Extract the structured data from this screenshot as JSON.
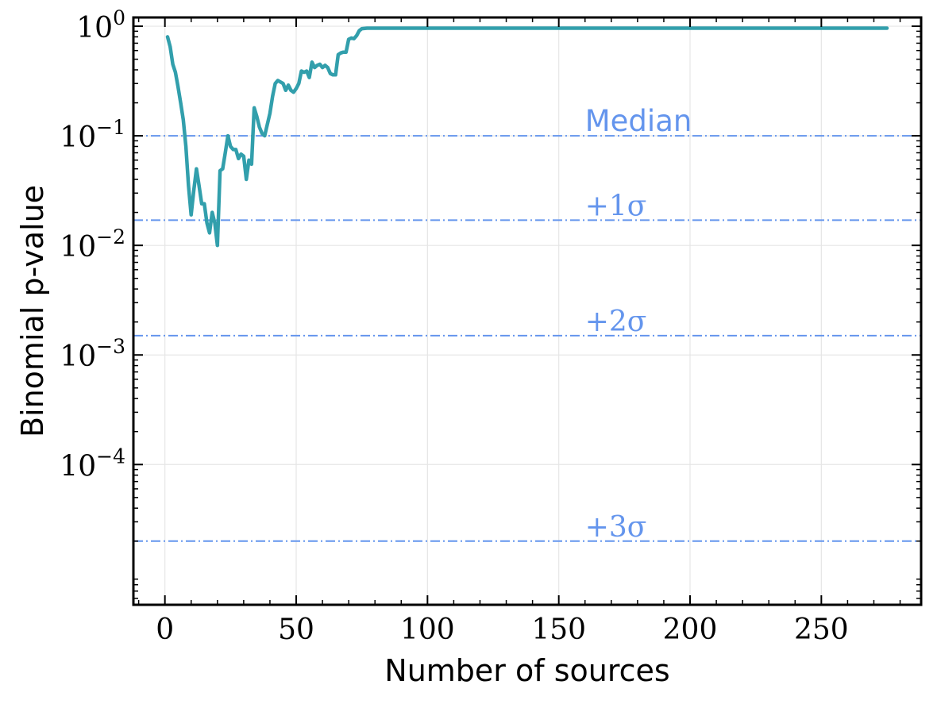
{
  "chart_data": {
    "type": "line",
    "xlabel": "Number of sources",
    "ylabel": "Binomial p-value",
    "xlim": [
      -12,
      288
    ],
    "ylim_log10": [
      -5.28,
      0.08
    ],
    "y_scale": "log",
    "grid": true,
    "x_ticks": [
      {
        "value": 0,
        "label": "0"
      },
      {
        "value": 50,
        "label": "50"
      },
      {
        "value": 100,
        "label": "100"
      },
      {
        "value": 150,
        "label": "150"
      },
      {
        "value": 200,
        "label": "200"
      },
      {
        "value": 250,
        "label": "250"
      }
    ],
    "y_ticks": [
      {
        "value": 1,
        "base": "10",
        "exp": "0"
      },
      {
        "value": 0.1,
        "base": "10",
        "exp": "−1"
      },
      {
        "value": 0.01,
        "base": "10",
        "exp": "−2"
      },
      {
        "value": 0.001,
        "base": "10",
        "exp": "−3"
      },
      {
        "value": 0.0001,
        "base": "10",
        "exp": "−4"
      }
    ],
    "reference_lines": [
      {
        "y": 0.1,
        "label": "Median",
        "label_x": 160,
        "style": "sans"
      },
      {
        "y": 0.017,
        "label": "+1σ",
        "label_x": 160,
        "style": "serif"
      },
      {
        "y": 0.0015,
        "label": "+2σ",
        "label_x": 160,
        "style": "serif"
      },
      {
        "y": 2e-05,
        "label": "+3σ",
        "label_x": 160,
        "style": "serif"
      }
    ],
    "series": [
      {
        "color": "#329fac",
        "points": [
          [
            1,
            0.8
          ],
          [
            2,
            0.65
          ],
          [
            3,
            0.45
          ],
          [
            4,
            0.38
          ],
          [
            5,
            0.28
          ],
          [
            6,
            0.2
          ],
          [
            7,
            0.14
          ],
          [
            8,
            0.08
          ],
          [
            9,
            0.035
          ],
          [
            10,
            0.019
          ],
          [
            11,
            0.032
          ],
          [
            12,
            0.05
          ],
          [
            13,
            0.035
          ],
          [
            14,
            0.024
          ],
          [
            15,
            0.024
          ],
          [
            16,
            0.016
          ],
          [
            17,
            0.013
          ],
          [
            18,
            0.02
          ],
          [
            19,
            0.016
          ],
          [
            20,
            0.01
          ],
          [
            21,
            0.048
          ],
          [
            22,
            0.05
          ],
          [
            23,
            0.07
          ],
          [
            24,
            0.1
          ],
          [
            25,
            0.08
          ],
          [
            26,
            0.075
          ],
          [
            27,
            0.075
          ],
          [
            28,
            0.062
          ],
          [
            29,
            0.068
          ],
          [
            30,
            0.065
          ],
          [
            31,
            0.04
          ],
          [
            32,
            0.06
          ],
          [
            33,
            0.055
          ],
          [
            34,
            0.18
          ],
          [
            35,
            0.15
          ],
          [
            36,
            0.12
          ],
          [
            37,
            0.105
          ],
          [
            38,
            0.1
          ],
          [
            40,
            0.16
          ],
          [
            41,
            0.23
          ],
          [
            42,
            0.3
          ],
          [
            43,
            0.32
          ],
          [
            44,
            0.31
          ],
          [
            45,
            0.3
          ],
          [
            46,
            0.26
          ],
          [
            47,
            0.29
          ],
          [
            48,
            0.26
          ],
          [
            49,
            0.25
          ],
          [
            50,
            0.27
          ],
          [
            51,
            0.3
          ],
          [
            52,
            0.39
          ],
          [
            53,
            0.38
          ],
          [
            54,
            0.39
          ],
          [
            55,
            0.34
          ],
          [
            56,
            0.47
          ],
          [
            57,
            0.42
          ],
          [
            58,
            0.44
          ],
          [
            59,
            0.45
          ],
          [
            60,
            0.42
          ],
          [
            61,
            0.44
          ],
          [
            62,
            0.42
          ],
          [
            63,
            0.37
          ],
          [
            64,
            0.36
          ],
          [
            65,
            0.36
          ],
          [
            66,
            0.55
          ],
          [
            67,
            0.57
          ],
          [
            68,
            0.58
          ],
          [
            69,
            0.58
          ],
          [
            70,
            0.76
          ],
          [
            71,
            0.78
          ],
          [
            72,
            0.77
          ],
          [
            73,
            0.82
          ],
          [
            74,
            0.91
          ],
          [
            75,
            0.95
          ],
          [
            77,
            0.96
          ],
          [
            100,
            0.96
          ],
          [
            150,
            0.96
          ],
          [
            200,
            0.96
          ],
          [
            250,
            0.96
          ],
          [
            275,
            0.96
          ]
        ]
      }
    ]
  },
  "colors": {
    "series": "#329fac",
    "reference": "#6495ed",
    "grid": "#e6e6e6",
    "axes": "#000000"
  }
}
